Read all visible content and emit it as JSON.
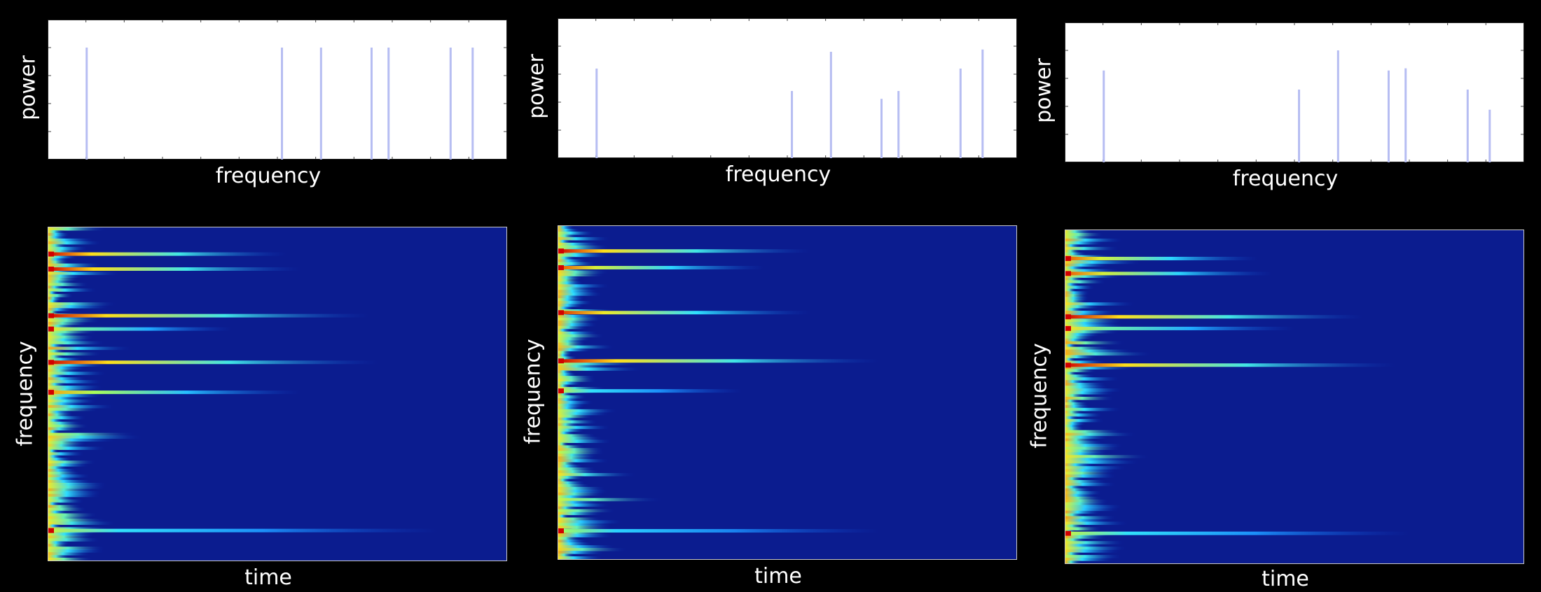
{
  "colors": {
    "background": "#000000",
    "spectrum_line": "#b6bdf2",
    "spectrogram_bg": "#0b1c8f",
    "colormap": [
      "#00008b",
      "#0a39c4",
      "#1e9bff",
      "#2fe0ff",
      "#a8ff5a",
      "#ffe31a",
      "#ff7b00",
      "#d10000"
    ]
  },
  "panels": [
    {
      "spectrum": {
        "xlabel": "frequency",
        "ylabel": "power"
      },
      "spectrogram": {
        "xlabel": "time",
        "ylabel": "frequency"
      }
    },
    {
      "spectrum": {
        "xlabel": "frequency",
        "ylabel": "power"
      },
      "spectrogram": {
        "xlabel": "time",
        "ylabel": "frequency"
      }
    },
    {
      "spectrum": {
        "xlabel": "frequency",
        "ylabel": "power"
      },
      "spectrogram": {
        "xlabel": "time",
        "ylabel": "frequency"
      }
    }
  ],
  "chart_data": [
    {
      "type": "bar",
      "xlabel": "frequency",
      "ylabel": "power",
      "x": [
        0.085,
        0.51,
        0.595,
        0.705,
        0.742,
        0.877,
        0.925
      ],
      "values": [
        1.0,
        1.0,
        1.0,
        1.0,
        1.0,
        1.0,
        1.0
      ],
      "xlim": [
        0,
        1
      ],
      "ylim": [
        0,
        1.25
      ]
    },
    {
      "type": "heatmap",
      "xlabel": "time",
      "ylabel": "frequency",
      "lines": [
        {
          "freq": 0.08,
          "decay": 0.52,
          "intensity": 1.0
        },
        {
          "freq": 0.125,
          "decay": 0.55,
          "intensity": 1.0
        },
        {
          "freq": 0.265,
          "decay": 0.7,
          "intensity": 1.0
        },
        {
          "freq": 0.305,
          "decay": 0.4,
          "intensity": 0.7
        },
        {
          "freq": 0.405,
          "decay": 0.72,
          "intensity": 1.0
        },
        {
          "freq": 0.495,
          "decay": 0.55,
          "intensity": 0.8
        },
        {
          "freq": 0.91,
          "decay": 0.85,
          "intensity": 0.6
        }
      ]
    },
    {
      "type": "bar",
      "xlabel": "frequency",
      "ylabel": "power",
      "x": [
        0.085,
        0.51,
        0.595,
        0.705,
        0.742,
        0.877,
        0.925
      ],
      "values": [
        0.8,
        0.6,
        0.95,
        0.53,
        0.6,
        0.8,
        0.97
      ],
      "xlim": [
        0,
        1
      ],
      "ylim": [
        0,
        1.25
      ]
    },
    {
      "type": "heatmap",
      "xlabel": "time",
      "ylabel": "frequency",
      "lines": [
        {
          "freq": 0.075,
          "decay": 0.55,
          "intensity": 1.0
        },
        {
          "freq": 0.125,
          "decay": 0.45,
          "intensity": 0.9
        },
        {
          "freq": 0.26,
          "decay": 0.55,
          "intensity": 0.95
        },
        {
          "freq": 0.405,
          "decay": 0.7,
          "intensity": 1.0
        },
        {
          "freq": 0.495,
          "decay": 0.4,
          "intensity": 0.6
        },
        {
          "freq": 0.915,
          "decay": 0.7,
          "intensity": 0.55
        }
      ]
    },
    {
      "type": "bar",
      "xlabel": "frequency",
      "ylabel": "power",
      "x": [
        0.085,
        0.51,
        0.595,
        0.705,
        0.742,
        0.877,
        0.925
      ],
      "values": [
        0.82,
        0.65,
        1.0,
        0.82,
        0.84,
        0.65,
        0.47
      ],
      "xlim": [
        0,
        1
      ],
      "ylim": [
        0,
        1.25
      ]
    },
    {
      "type": "heatmap",
      "xlabel": "time",
      "ylabel": "frequency",
      "lines": [
        {
          "freq": 0.085,
          "decay": 0.42,
          "intensity": 0.9
        },
        {
          "freq": 0.13,
          "decay": 0.45,
          "intensity": 0.9
        },
        {
          "freq": 0.26,
          "decay": 0.65,
          "intensity": 1.0
        },
        {
          "freq": 0.295,
          "decay": 0.5,
          "intensity": 0.7
        },
        {
          "freq": 0.405,
          "decay": 0.72,
          "intensity": 1.0
        },
        {
          "freq": 0.91,
          "decay": 0.75,
          "intensity": 0.6
        }
      ]
    }
  ]
}
